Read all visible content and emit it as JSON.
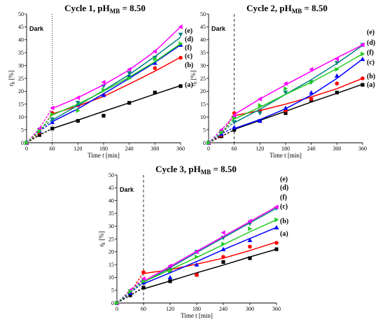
{
  "chart_data": [
    {
      "type": "scatter",
      "title": "Cycle 1, pH",
      "title_sub": "MB",
      "title_tail": " = 8.50",
      "xlabel": "Time t [min]",
      "ylabel": "η",
      "ylabel_sub": "t",
      "ylabel_tail": " [%]",
      "dark_label": "Dark",
      "dark_line_x": 60,
      "dark_line_style": "dotted",
      "xlim": [
        0,
        360
      ],
      "ylim": [
        0,
        50
      ],
      "xticks": [
        "0",
        "60",
        "120",
        "180",
        "240",
        "300",
        "360"
      ],
      "yticks": [
        "0",
        "5",
        "10",
        "15",
        "20",
        "25",
        "30",
        "35",
        "40",
        "45",
        "50"
      ],
      "x": [
        0,
        30,
        60,
        120,
        180,
        240,
        300,
        360
      ],
      "series": [
        {
          "name": "(a)",
          "color": "#000000",
          "marker": "square",
          "values": [
            0,
            3,
            5.5,
            8.5,
            10.5,
            15.5,
            19.5,
            22
          ],
          "fit": [
            [
              60,
              5.5
            ],
            [
              120,
              8.8
            ],
            [
              180,
              12.2
            ],
            [
              240,
              15.5
            ],
            [
              300,
              18.9
            ],
            [
              360,
              22.2
            ]
          ]
        },
        {
          "name": "(b)",
          "color": "#ff0000",
          "marker": "circle",
          "values": [
            0,
            4,
            11.5,
            14.5,
            18.5,
            25.5,
            29,
            33
          ],
          "fit": [
            [
              60,
              11.2
            ],
            [
              120,
              14.3
            ],
            [
              180,
              18
            ],
            [
              240,
              22.8
            ],
            [
              300,
              27.8
            ],
            [
              360,
              33.2
            ]
          ]
        },
        {
          "name": "(c)",
          "color": "#0000ff",
          "marker": "triangle-up",
          "values": [
            0,
            4.5,
            8,
            15,
            18.5,
            26,
            31,
            38
          ],
          "fit": [
            [
              60,
              8.2
            ],
            [
              120,
              13.2
            ],
            [
              180,
              19
            ],
            [
              240,
              25
            ],
            [
              300,
              31.2
            ],
            [
              360,
              38
            ]
          ]
        },
        {
          "name": "(d)",
          "color": "#008080",
          "marker": "triangle-down",
          "values": [
            0,
            5,
            9,
            15.5,
            22,
            27,
            33,
            42
          ],
          "fit": [
            [
              60,
              8.8
            ],
            [
              120,
              14.5
            ],
            [
              180,
              20.3
            ],
            [
              240,
              26.5
            ],
            [
              300,
              33.5
            ],
            [
              360,
              41
            ]
          ]
        },
        {
          "name": "(e)",
          "color": "#ff00ff",
          "marker": "triangle-left",
          "values": [
            0,
            5.5,
            13.5,
            17.5,
            23.5,
            28.5,
            35.5,
            45
          ],
          "fit": [
            [
              60,
              13.3
            ],
            [
              120,
              17.5
            ],
            [
              180,
              22.5
            ],
            [
              240,
              28.3
            ],
            [
              300,
              35.5
            ],
            [
              360,
              45
            ]
          ]
        },
        {
          "name": "(f)",
          "color": "#22cc22",
          "marker": "triangle-right",
          "values": [
            0,
            4.5,
            11,
            12.5,
            20.5,
            25,
            32.5,
            38.5
          ],
          "fit": [
            [
              60,
              10.8
            ],
            [
              120,
              15
            ],
            [
              180,
              20
            ],
            [
              240,
              25.5
            ],
            [
              300,
              31.5
            ],
            [
              360,
              38.5
            ]
          ]
        }
      ]
    },
    {
      "type": "scatter",
      "title": "Cycle 2, pH",
      "title_sub": "MB",
      "title_tail": " = 8.50",
      "xlabel": "Time t [min]",
      "ylabel": "η",
      "ylabel_sub": "t",
      "ylabel_tail": " [%]",
      "dark_label": "Dark",
      "dark_line_x": 60,
      "dark_line_style": "dashed",
      "xlim": [
        0,
        360
      ],
      "ylim": [
        0,
        50
      ],
      "xticks": [
        "0",
        "60",
        "120",
        "180",
        "240",
        "300",
        "360"
      ],
      "yticks": [
        "0",
        "5",
        "10",
        "15",
        "20",
        "25",
        "30",
        "35",
        "40",
        "45",
        "50"
      ],
      "x": [
        0,
        30,
        60,
        120,
        180,
        240,
        300,
        360
      ],
      "series": [
        {
          "name": "(a)",
          "color": "#000000",
          "marker": "square",
          "values": [
            0,
            2.5,
            5,
            8.5,
            11.5,
            16.5,
            19.5,
            22.5
          ],
          "fit": [
            [
              60,
              5.2
            ],
            [
              120,
              8.7
            ],
            [
              180,
              12.2
            ],
            [
              240,
              15.8
            ],
            [
              300,
              19.2
            ],
            [
              360,
              22.7
            ]
          ]
        },
        {
          "name": "(b)",
          "color": "#ff0000",
          "marker": "circle",
          "values": [
            0,
            3,
            11.5,
            12.5,
            12.5,
            17,
            23,
            25
          ],
          "fit": [
            [
              60,
              10.5
            ],
            [
              120,
              12.5
            ],
            [
              180,
              15
            ],
            [
              240,
              17.8
            ],
            [
              300,
              21
            ],
            [
              360,
              25
            ]
          ]
        },
        {
          "name": "(c)",
          "color": "#0000ff",
          "marker": "triangle-up",
          "values": [
            0,
            3.5,
            6,
            8.5,
            13.5,
            19.5,
            26,
            32.5
          ],
          "fit": [
            [
              60,
              5.5
            ],
            [
              120,
              9
            ],
            [
              180,
              13.2
            ],
            [
              240,
              18.5
            ],
            [
              300,
              25
            ],
            [
              360,
              32.5
            ]
          ]
        },
        {
          "name": "(d)",
          "color": "#008080",
          "marker": "triangle-down",
          "values": [
            0,
            4,
            8,
            11.5,
            19.5,
            23.5,
            31,
            38
          ],
          "fit": [
            [
              60,
              7.8
            ],
            [
              120,
              13
            ],
            [
              180,
              18.8
            ],
            [
              240,
              24.5
            ],
            [
              300,
              30.8
            ],
            [
              360,
              37.8
            ]
          ]
        },
        {
          "name": "(e)",
          "color": "#ff00ff",
          "marker": "triangle-left",
          "values": [
            0,
            5,
            10.5,
            17,
            23,
            28.5,
            32.5,
            38
          ],
          "fit": [
            [
              60,
              11
            ],
            [
              120,
              17
            ],
            [
              180,
              22.5
            ],
            [
              240,
              27.8
            ],
            [
              300,
              33
            ],
            [
              360,
              38
            ]
          ]
        },
        {
          "name": "(f)",
          "color": "#22cc22",
          "marker": "triangle-right",
          "values": [
            0,
            4,
            9.5,
            14.5,
            21,
            23.5,
            28.5,
            34.5
          ],
          "fit": [
            [
              60,
              9.2
            ],
            [
              120,
              13.8
            ],
            [
              180,
              18.8
            ],
            [
              240,
              23.5
            ],
            [
              300,
              28.8
            ],
            [
              360,
              34.5
            ]
          ]
        }
      ]
    },
    {
      "type": "scatter",
      "title": "Cycle 3, pH",
      "title_sub": "MB",
      "title_tail": " = 8.50",
      "xlabel": "Time t [min]",
      "ylabel": "η",
      "ylabel_sub": "t",
      "ylabel_tail": " [%]",
      "dark_label": "Dark",
      "dark_line_x": 60,
      "dark_line_style": "dashed",
      "xlim": [
        0,
        360
      ],
      "ylim": [
        0,
        50
      ],
      "xticks": [
        "0",
        "60",
        "120",
        "180",
        "240",
        "300",
        "360"
      ],
      "yticks": [
        "0",
        "5",
        "10",
        "15",
        "20",
        "25",
        "30",
        "35",
        "40",
        "45",
        "50"
      ],
      "x": [
        0,
        30,
        60,
        120,
        180,
        240,
        300,
        360
      ],
      "series": [
        {
          "name": "(a)",
          "color": "#000000",
          "marker": "square",
          "values": [
            0,
            3,
            6,
            8.5,
            11,
            16,
            17.5,
            21
          ],
          "fit": [
            [
              60,
              5.5
            ],
            [
              120,
              8.6
            ],
            [
              180,
              11.8
            ],
            [
              240,
              14.8
            ],
            [
              300,
              18
            ],
            [
              360,
              21
            ]
          ]
        },
        {
          "name": "(b)",
          "color": "#ff0000",
          "marker": "circle",
          "values": [
            0,
            4,
            12,
            13,
            11,
            18,
            22,
            23.5
          ],
          "fit": [
            [
              60,
              11.5
            ],
            [
              120,
              13
            ],
            [
              180,
              15.2
            ],
            [
              240,
              17.5
            ],
            [
              300,
              20.5
            ],
            [
              360,
              23.8
            ]
          ]
        },
        {
          "name": "(c)",
          "color": "#0000ff",
          "marker": "triangle-up",
          "values": [
            0,
            4,
            8,
            10,
            15,
            21,
            24.5,
            29.5
          ],
          "fit": [
            [
              60,
              7.5
            ],
            [
              120,
              11.8
            ],
            [
              180,
              16.2
            ],
            [
              240,
              20.8
            ],
            [
              300,
              25.2
            ],
            [
              360,
              29.5
            ]
          ]
        },
        {
          "name": "(d)",
          "color": "#008080",
          "marker": "triangle-down",
          "values": [
            0,
            4.5,
            9,
            13.5,
            20,
            25.5,
            31,
            37
          ],
          "fit": [
            [
              60,
              8
            ],
            [
              120,
              13.8
            ],
            [
              180,
              19.7
            ],
            [
              240,
              25.5
            ],
            [
              300,
              31.3
            ],
            [
              360,
              37
            ]
          ]
        },
        {
          "name": "(e)",
          "color": "#ff00ff",
          "marker": "triangle-left",
          "values": [
            0,
            5,
            9.5,
            14.5,
            20,
            27.5,
            32,
            37.5
          ],
          "fit": [
            [
              60,
              8.5
            ],
            [
              120,
              14.3
            ],
            [
              180,
              20.2
            ],
            [
              240,
              26
            ],
            [
              300,
              31.8
            ],
            [
              360,
              37.6
            ]
          ]
        },
        {
          "name": "(f)",
          "color": "#22cc22",
          "marker": "triangle-right",
          "values": [
            0,
            4.5,
            8.5,
            12.5,
            18,
            23,
            29,
            32.5
          ],
          "fit": [
            [
              60,
              8.2
            ],
            [
              120,
              13
            ],
            [
              180,
              17.8
            ],
            [
              240,
              22.8
            ],
            [
              300,
              27.8
            ],
            [
              360,
              32.5
            ]
          ]
        }
      ]
    }
  ]
}
